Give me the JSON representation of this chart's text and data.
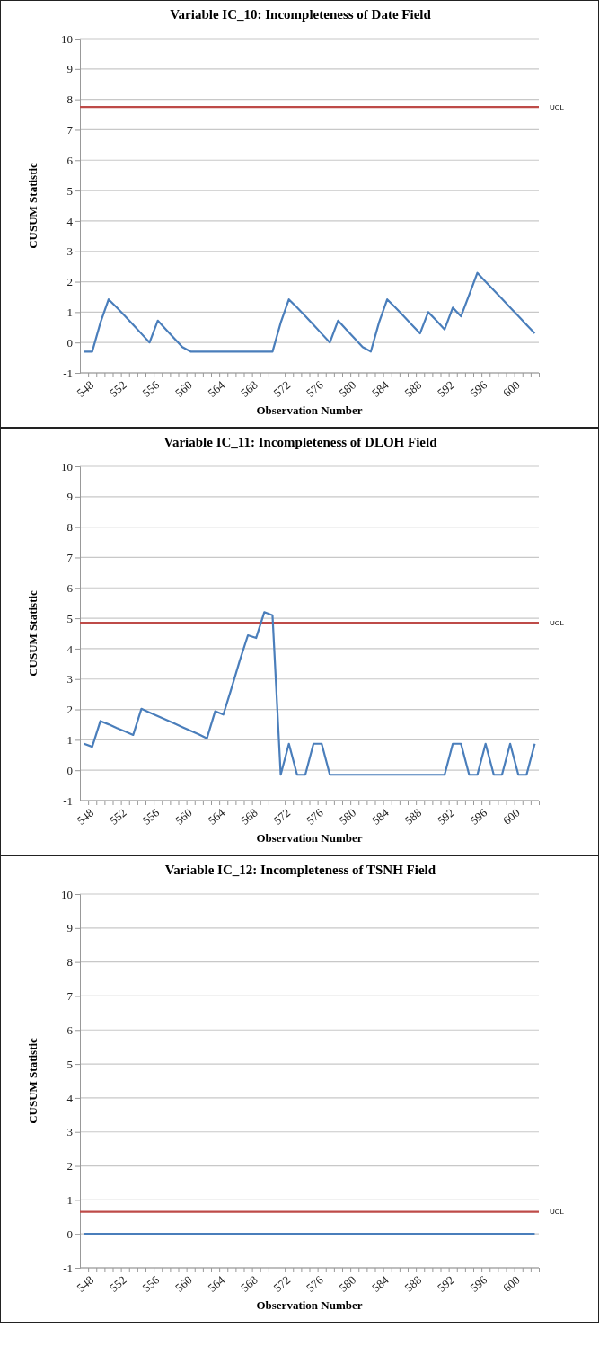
{
  "chart_data": [
    {
      "type": "line",
      "title": "Variable IC_10:  Incompleteness of Date Field",
      "xlabel": "Observation Number",
      "ylabel": "CUSUM Statistic",
      "categories": [
        "548",
        null,
        null,
        null,
        "552",
        null,
        null,
        null,
        "556",
        null,
        null,
        null,
        "560",
        null,
        null,
        null,
        "564",
        null,
        null,
        null,
        "568",
        null,
        null,
        null,
        "572",
        null,
        null,
        null,
        "576",
        null,
        null,
        null,
        "580",
        null,
        null,
        null,
        "584",
        null,
        null,
        null,
        "588",
        null,
        null,
        null,
        "592",
        null,
        null,
        null,
        "596",
        null,
        null,
        null,
        "600",
        null,
        null,
        null
      ],
      "series": [
        {
          "color": "#4a7ebb",
          "values": [
            -0.3,
            -0.3,
            0.65,
            1.42,
            1.15,
            0.87,
            0.58,
            0.29,
            0,
            0.72,
            0.43,
            0.14,
            -0.15,
            -0.3,
            -0.3,
            -0.3,
            -0.3,
            -0.3,
            -0.3,
            -0.3,
            -0.3,
            -0.3,
            -0.3,
            -0.3,
            0.65,
            1.42,
            1.15,
            0.87,
            0.58,
            0.29,
            0,
            0.72,
            0.43,
            0.14,
            -0.15,
            -0.3,
            0.66,
            1.42,
            1.15,
            0.87,
            0.58,
            0.3,
            1.0,
            0.72,
            0.43,
            1.15,
            0.86,
            1.57,
            2.29,
            2.0,
            1.72,
            1.44,
            1.15,
            0.87,
            0.58,
            0.3
          ]
        }
      ],
      "ylim": [
        -1,
        10
      ],
      "yticks": [
        -1,
        0,
        1,
        2,
        3,
        4,
        5,
        6,
        7,
        8,
        9,
        10
      ],
      "grid": "y",
      "marker": "none",
      "line_style": "solid",
      "ref_lines": [
        {
          "axis": "y",
          "value": 7.75,
          "label": "UCL",
          "color": "#be4b48"
        }
      ]
    },
    {
      "type": "line",
      "title": "Variable IC_11:  Incompleteness of DLOH Field",
      "xlabel": "Observation Number",
      "ylabel": "CUSUM Statistic",
      "categories": [
        "548",
        null,
        null,
        null,
        "552",
        null,
        null,
        null,
        "556",
        null,
        null,
        null,
        "560",
        null,
        null,
        null,
        "564",
        null,
        null,
        null,
        "568",
        null,
        null,
        null,
        "572",
        null,
        null,
        null,
        "576",
        null,
        null,
        null,
        "580",
        null,
        null,
        null,
        "584",
        null,
        null,
        null,
        "588",
        null,
        null,
        null,
        "592",
        null,
        null,
        null,
        "596",
        null,
        null,
        null,
        "600",
        null,
        null,
        null
      ],
      "series": [
        {
          "color": "#4a7ebb",
          "values": [
            0.87,
            0.77,
            1.62,
            1.51,
            1.39,
            1.28,
            1.16,
            2.02,
            1.9,
            1.78,
            1.66,
            1.54,
            1.42,
            1.3,
            1.18,
            1.05,
            1.94,
            1.83,
            2.7,
            3.6,
            4.44,
            4.35,
            5.2,
            5.1,
            -0.15,
            0.87,
            -0.15,
            -0.15,
            0.87,
            0.87,
            -0.15,
            -0.15,
            -0.15,
            -0.15,
            -0.15,
            -0.15,
            -0.15,
            -0.15,
            -0.15,
            -0.15,
            -0.15,
            -0.15,
            -0.15,
            -0.15,
            -0.15,
            0.87,
            0.87,
            -0.15,
            -0.15,
            0.87,
            -0.15,
            -0.15,
            0.87,
            -0.15,
            -0.15,
            0.87
          ]
        }
      ],
      "ylim": [
        -1,
        10
      ],
      "yticks": [
        -1,
        0,
        1,
        2,
        3,
        4,
        5,
        6,
        7,
        8,
        9,
        10
      ],
      "grid": "y",
      "marker": "none",
      "line_style": "solid",
      "ref_lines": [
        {
          "axis": "y",
          "value": 4.85,
          "label": "UCL",
          "color": "#be4b48"
        }
      ]
    },
    {
      "type": "line",
      "title": "Variable IC_12:  Incompleteness of TSNH Field",
      "xlabel": "Observation Number",
      "ylabel": "CUSUM Statistic",
      "categories": [
        "548",
        null,
        null,
        null,
        "552",
        null,
        null,
        null,
        "556",
        null,
        null,
        null,
        "560",
        null,
        null,
        null,
        "564",
        null,
        null,
        null,
        "568",
        null,
        null,
        null,
        "572",
        null,
        null,
        null,
        "576",
        null,
        null,
        null,
        "580",
        null,
        null,
        null,
        "584",
        null,
        null,
        null,
        "588",
        null,
        null,
        null,
        "592",
        null,
        null,
        null,
        "596",
        null,
        null,
        null,
        "600",
        null,
        null,
        null
      ],
      "series": [
        {
          "color": "#4a7ebb",
          "values": [
            0,
            0,
            0,
            0,
            0,
            0,
            0,
            0,
            0,
            0,
            0,
            0,
            0,
            0,
            0,
            0,
            0,
            0,
            0,
            0,
            0,
            0,
            0,
            0,
            0,
            0,
            0,
            0,
            0,
            0,
            0,
            0,
            0,
            0,
            0,
            0,
            0,
            0,
            0,
            0,
            0,
            0,
            0,
            0,
            0,
            0,
            0,
            0,
            0,
            0,
            0,
            0,
            0,
            0,
            0,
            0
          ]
        }
      ],
      "ylim": [
        -1,
        10
      ],
      "yticks": [
        -1,
        0,
        1,
        2,
        3,
        4,
        5,
        6,
        7,
        8,
        9,
        10
      ],
      "grid": "y",
      "marker": "none",
      "line_style": "solid",
      "ref_lines": [
        {
          "axis": "y",
          "value": 0.65,
          "label": "UCL",
          "color": "#be4b48"
        }
      ]
    }
  ]
}
